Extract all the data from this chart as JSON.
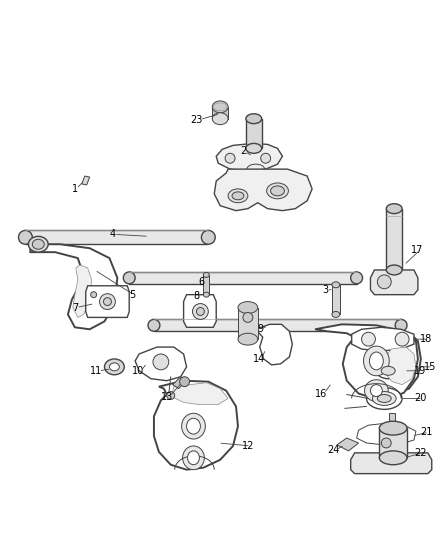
{
  "bg_color": "#ffffff",
  "line_color": "#444444",
  "label_color": "#000000",
  "figsize": [
    4.38,
    5.33
  ],
  "dpi": 100,
  "font_size": 7.0
}
